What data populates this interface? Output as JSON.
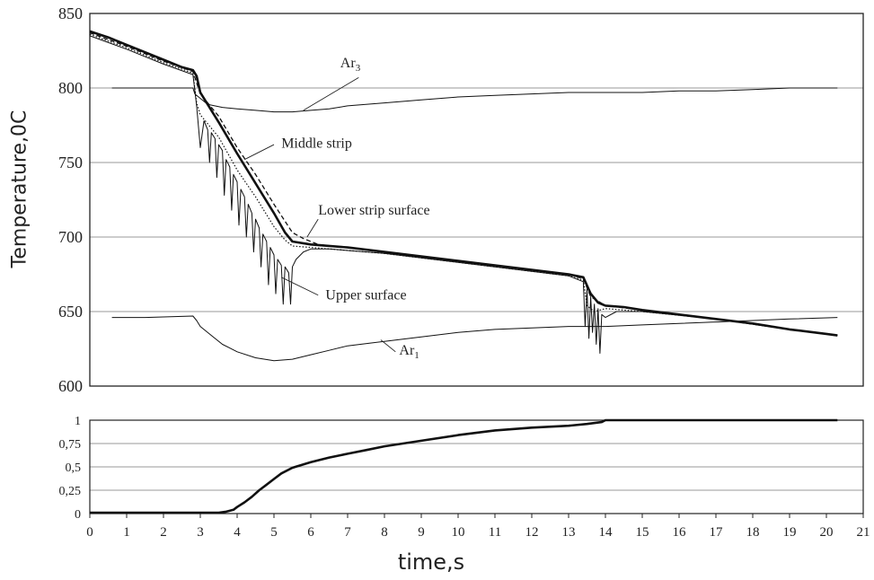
{
  "chart_data": [
    {
      "type": "line",
      "ylabel": "Temperature,0C",
      "xlabel": "",
      "xlim": [
        0,
        21
      ],
      "ylim": [
        600,
        850
      ],
      "yticks": [
        600,
        650,
        700,
        750,
        800,
        850
      ],
      "grid": true,
      "annotations": [
        {
          "text": "Ar",
          "sub": "3",
          "x": 6.8,
          "y": 814
        },
        {
          "text": "Middle strip",
          "x": 5.2,
          "y": 760
        },
        {
          "text": "Lower strip surface",
          "x": 6.2,
          "y": 715
        },
        {
          "text": "Upper surface",
          "x": 6.4,
          "y": 658
        },
        {
          "text": "Ar",
          "sub": "1",
          "x": 8.4,
          "y": 621
        }
      ],
      "series": [
        {
          "style": "thick",
          "x": [
            0,
            0.5,
            1,
            1.5,
            2,
            2.5,
            2.8,
            2.9,
            3.0,
            3.2,
            3.5,
            4.0,
            4.5,
            5.0,
            5.3,
            5.5,
            6,
            7,
            8,
            9,
            10,
            11,
            12,
            13,
            13.4,
            13.6,
            13.8,
            14.0,
            14.5,
            15,
            16,
            17,
            18,
            19,
            20,
            20.3
          ],
          "values": [
            838,
            834,
            829,
            824,
            819,
            814,
            812,
            808,
            797,
            789,
            777,
            756,
            736,
            716,
            703,
            697,
            695,
            693,
            690,
            687,
            684,
            681,
            678,
            675,
            673,
            662,
            656,
            654,
            653,
            651,
            648,
            645,
            642,
            638,
            635,
            634
          ]
        },
        {
          "style": "dotted",
          "x": [
            0,
            1,
            2,
            2.8,
            2.9,
            3.0,
            3.5,
            4.0,
            4.5,
            5.0,
            5.3,
            5.5,
            6,
            8,
            10,
            12,
            13,
            13.4,
            13.5,
            13.7,
            14.0,
            15,
            17,
            19,
            20.3
          ],
          "values": [
            836,
            827,
            817,
            810,
            790,
            782,
            767,
            745,
            727,
            707,
            698,
            694,
            693,
            689,
            683,
            677,
            674,
            671,
            654,
            650,
            652,
            650,
            645,
            638,
            634
          ]
        },
        {
          "style": "dashed",
          "x": [
            0,
            1,
            2,
            2.8,
            3.0,
            3.5,
            4.0,
            4.5,
            5.0,
            5.5,
            5.8,
            6.2,
            8,
            10,
            12,
            13,
            13.4,
            13.6,
            14,
            15,
            17,
            19,
            20.3
          ],
          "values": [
            837,
            828,
            818,
            811,
            796,
            781,
            760,
            742,
            722,
            703,
            699,
            695,
            690,
            684,
            678,
            675,
            672,
            660,
            654,
            651,
            645,
            638,
            634
          ]
        },
        {
          "style": "thin",
          "x": [
            0,
            1,
            2,
            2.8,
            2.9,
            3.0,
            3.1,
            3.2,
            3.25,
            3.3,
            3.4,
            3.45,
            3.5,
            3.6,
            3.65,
            3.7,
            3.8,
            3.85,
            3.9,
            4.0,
            4.05,
            4.1,
            4.2,
            4.25,
            4.3,
            4.4,
            4.45,
            4.5,
            4.6,
            4.65,
            4.7,
            4.8,
            4.85,
            4.9,
            5.0,
            5.05,
            5.1,
            5.2,
            5.25,
            5.3,
            5.4,
            5.45,
            5.5,
            5.6,
            5.8,
            6.0,
            6.5,
            8,
            10,
            12,
            13,
            13.4,
            13.45,
            13.5,
            13.55,
            13.6,
            13.65,
            13.7,
            13.75,
            13.8,
            13.85,
            13.9,
            14.0,
            14.3,
            15,
            17,
            19,
            20.3
          ],
          "values": [
            835,
            826,
            816,
            809,
            788,
            760,
            778,
            772,
            750,
            770,
            766,
            740,
            762,
            758,
            728,
            752,
            747,
            718,
            742,
            737,
            708,
            732,
            727,
            700,
            722,
            716,
            690,
            712,
            706,
            680,
            702,
            697,
            668,
            693,
            688,
            662,
            685,
            681,
            655,
            680,
            676,
            655,
            680,
            685,
            690,
            692,
            692,
            689,
            683,
            677,
            674,
            670,
            640,
            665,
            632,
            660,
            636,
            655,
            628,
            652,
            622,
            648,
            646,
            650,
            650,
            645,
            638,
            634
          ]
        },
        {
          "style": "thin",
          "name": "Ar3",
          "x": [
            0.6,
            1.5,
            2.8,
            2.85,
            3.2,
            3.6,
            4.0,
            4.5,
            5.0,
            5.5,
            6.0,
            6.5,
            7,
            8,
            9,
            10,
            11,
            12,
            13,
            14,
            15,
            16,
            17,
            18,
            19,
            20.3
          ],
          "values": [
            800,
            800,
            800,
            796,
            789,
            787,
            786,
            785,
            784,
            784,
            785,
            786,
            788,
            790,
            792,
            794,
            795,
            796,
            797,
            797,
            797,
            798,
            798,
            799,
            800,
            800
          ]
        },
        {
          "style": "thin",
          "name": "Ar1",
          "x": [
            0.6,
            1.5,
            2.8,
            2.9,
            3.0,
            3.3,
            3.6,
            4.0,
            4.5,
            5.0,
            5.5,
            6.0,
            6.5,
            7,
            8,
            9,
            10,
            11,
            12,
            13,
            14,
            15,
            16,
            17,
            18,
            19,
            20.3
          ],
          "values": [
            646,
            646,
            647,
            644,
            640,
            634,
            628,
            623,
            619,
            617,
            618,
            621,
            624,
            627,
            630,
            633,
            636,
            638,
            639,
            640,
            640,
            641,
            642,
            643,
            644,
            645,
            646
          ]
        }
      ]
    },
    {
      "type": "line",
      "xlabel": "time,s",
      "ylabel": "",
      "xlim": [
        0,
        21
      ],
      "ylim": [
        0,
        1
      ],
      "xticks": [
        0,
        1,
        2,
        3,
        4,
        5,
        6,
        7,
        8,
        9,
        10,
        11,
        12,
        13,
        14,
        15,
        16,
        17,
        18,
        19,
        20,
        21
      ],
      "yticks": [
        0,
        0.25,
        0.5,
        0.75,
        1
      ],
      "ytick_labels": [
        "0",
        "0,25",
        "0,5",
        "0,75",
        "1"
      ],
      "grid": true,
      "series": [
        {
          "style": "thick",
          "x": [
            0,
            1,
            2,
            3,
            3.5,
            3.7,
            3.9,
            4.0,
            4.2,
            4.4,
            4.6,
            4.8,
            5.0,
            5.2,
            5.5,
            6.0,
            6.5,
            7.0,
            7.5,
            8.0,
            9.0,
            10.0,
            11.0,
            12.0,
            13.0,
            13.5,
            13.9,
            14.0,
            15,
            16,
            17,
            18,
            19,
            20,
            20.3
          ],
          "values": [
            0.01,
            0.01,
            0.01,
            0.01,
            0.01,
            0.02,
            0.04,
            0.07,
            0.12,
            0.18,
            0.25,
            0.31,
            0.37,
            0.43,
            0.49,
            0.55,
            0.6,
            0.64,
            0.68,
            0.72,
            0.78,
            0.84,
            0.89,
            0.92,
            0.94,
            0.96,
            0.98,
            1.0,
            1.0,
            1.0,
            1.0,
            1.0,
            1.0,
            1.0,
            1.0
          ]
        }
      ]
    }
  ]
}
